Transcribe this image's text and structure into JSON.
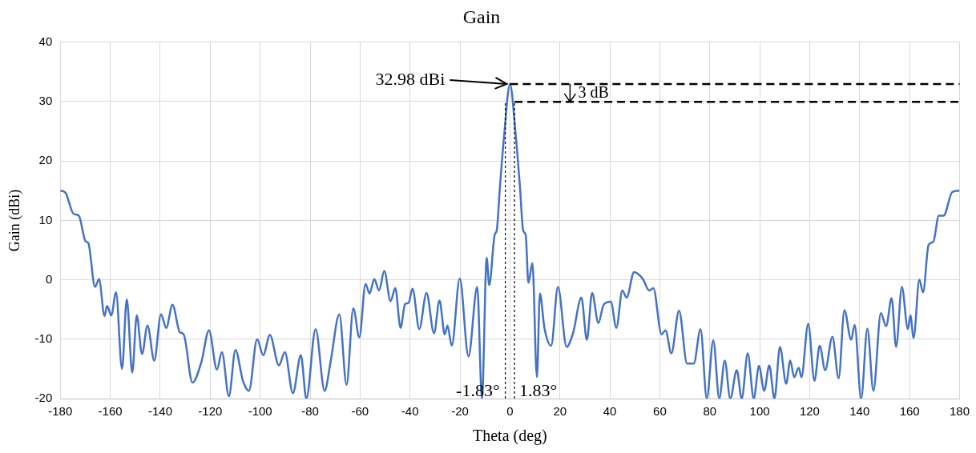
{
  "chart_data": {
    "type": "line",
    "title": "Gain",
    "xlabel": "Theta (deg)",
    "ylabel": "Gain (dBi)",
    "xlim": [
      -180,
      180
    ],
    "xticks": [
      -180,
      -160,
      -140,
      -120,
      -100,
      -80,
      -60,
      -40,
      -20,
      0,
      20,
      40,
      60,
      80,
      100,
      120,
      140,
      160,
      180
    ],
    "ylim": [
      -20,
      40
    ],
    "yticks": [
      -20,
      -10,
      0,
      10,
      20,
      30,
      40
    ],
    "grid": true,
    "legend": false,
    "marker": "none",
    "line_style": "solid",
    "series": [
      {
        "color": "#4472c4",
        "x": [
          -180,
          -178,
          -174.7,
          -172.6,
          -169.9,
          -168.8,
          -166.1,
          -164.5,
          -162.3,
          -161.3,
          -159.6,
          -157.7,
          -155.3,
          -153.4,
          -151.2,
          -149.4,
          -147.3,
          -145.1,
          -142.4,
          -139.7,
          -137.6,
          -135.1,
          -132.2,
          -130.6,
          -127.1,
          -123.5,
          -120.5,
          -117.3,
          -115.3,
          -112.5,
          -109.9,
          -106.9,
          -104.5,
          -101.2,
          -98.8,
          -96.1,
          -92.5,
          -90.1,
          -86.9,
          -83.7,
          -81.5,
          -77.8,
          -74.2,
          -71.8,
          -68.3,
          -65.4,
          -62.7,
          -60.3,
          -57.8,
          -56.2,
          -54.3,
          -52.4,
          -50.3,
          -47.8,
          -45.9,
          -43.8,
          -42,
          -40.6,
          -39,
          -36.3,
          -33.4,
          -30.4,
          -28.2,
          -26.1,
          -25,
          -23.3,
          -20.1,
          -16.6,
          -13.1,
          -11.2,
          -9.3,
          -8.3,
          -6.1,
          -5.3,
          -4,
          -2.3,
          0,
          2.3,
          4,
          5.3,
          6.3,
          7.4,
          9,
          10.8,
          12,
          13.8,
          16.5,
          19.2,
          22.7,
          25.3,
          28.6,
          30.8,
          32.9,
          35.4,
          37.5,
          40.4,
          42.6,
          45,
          46.7,
          49.7,
          53.1,
          55.8,
          57.4,
          60.7,
          62.3,
          64.6,
          67.7,
          70.9,
          73.6,
          76.3,
          78.8,
          81.4,
          83.8,
          86,
          88.2,
          90.8,
          92.8,
          95.2,
          97.6,
          99.7,
          101.8,
          103.8,
          105.9,
          108.1,
          110.6,
          112.2,
          113.8,
          115.6,
          116.7,
          119.4,
          121.9,
          124,
          126.2,
          129.1,
          131.6,
          133.9,
          136.6,
          138,
          140.6,
          143.1,
          145.5,
          148.5,
          150.6,
          152.8,
          154.6,
          156.9,
          159.3,
          160.3,
          161.6,
          163.9,
          165.4,
          167.6,
          169.5,
          171.7,
          173.6,
          177.1,
          180
        ],
        "values": [
          15,
          14.7,
          11.1,
          10.8,
          6.5,
          6.2,
          -1.2,
          0.1,
          -6.1,
          -4.4,
          -6,
          -2.1,
          -15,
          -3.3,
          -15.6,
          -6,
          -12.5,
          -7.7,
          -13.6,
          -5.8,
          -8.1,
          -4.2,
          -8.8,
          -9.2,
          -17.3,
          -13.8,
          -8.5,
          -15.1,
          -12.2,
          -19.6,
          -11.8,
          -17,
          -18.7,
          -10,
          -12.7,
          -9.3,
          -14.4,
          -12.2,
          -19.1,
          -12.7,
          -20,
          -8.3,
          -18.7,
          -13.8,
          -5.8,
          -17.7,
          -4.8,
          -9.7,
          -0.7,
          -2.3,
          0.1,
          -1.8,
          1.5,
          -3.6,
          -1.4,
          -8.1,
          -4.1,
          -3.9,
          -1.5,
          -8.3,
          -2.2,
          -9,
          -3.5,
          -9.2,
          -7.7,
          -11.1,
          0.2,
          -12.9,
          -1.2,
          -20,
          3.7,
          -0.9,
          7.6,
          8.3,
          15.7,
          24.4,
          32.98,
          24.4,
          15.7,
          8.3,
          7.6,
          -0.5,
          2.8,
          -16.4,
          -2.3,
          -8.1,
          -11.1,
          -1.2,
          -11.3,
          -8.9,
          -3,
          -10.1,
          -2.2,
          -7.3,
          -4.2,
          -3.7,
          -8.1,
          -1.8,
          -3,
          1.3,
          0.2,
          -1.8,
          -1.4,
          -9.2,
          -8.5,
          -12.4,
          -5.2,
          -14.1,
          -14.1,
          -8.3,
          -20,
          -10.2,
          -20,
          -13.6,
          -20,
          -15.2,
          -20,
          -12.4,
          -20,
          -14.5,
          -18.7,
          -14.4,
          -20,
          -11.3,
          -17.5,
          -13.6,
          -16.4,
          -14.8,
          -16.4,
          -7.4,
          -17,
          -11.1,
          -15.2,
          -9.6,
          -16.6,
          -5.1,
          -10.1,
          -7.6,
          -20,
          -8.2,
          -18.7,
          -5.6,
          -7.8,
          -3.1,
          -11.3,
          -1.2,
          -8.3,
          -6,
          -9.8,
          0,
          -2.1,
          5.9,
          6.4,
          10.8,
          10.8,
          14.8,
          15
        ]
      }
    ],
    "ref_lines": [
      {
        "axis": "y",
        "value": 32.98,
        "line_style": "dashed",
        "color": "#000000"
      },
      {
        "axis": "y",
        "value": 29.98,
        "line_style": "dashed",
        "color": "#000000"
      },
      {
        "axis": "x",
        "value": -1.83,
        "label": "-1.83°",
        "line_style": "dotted",
        "color": "#000000"
      },
      {
        "axis": "x",
        "value": 1.83,
        "label": "1.83°",
        "line_style": "dotted",
        "color": "#000000"
      }
    ],
    "annotations": [
      {
        "text": "32.98 dBi",
        "x": 0,
        "y": 32.98
      },
      "3 dB"
    ]
  }
}
